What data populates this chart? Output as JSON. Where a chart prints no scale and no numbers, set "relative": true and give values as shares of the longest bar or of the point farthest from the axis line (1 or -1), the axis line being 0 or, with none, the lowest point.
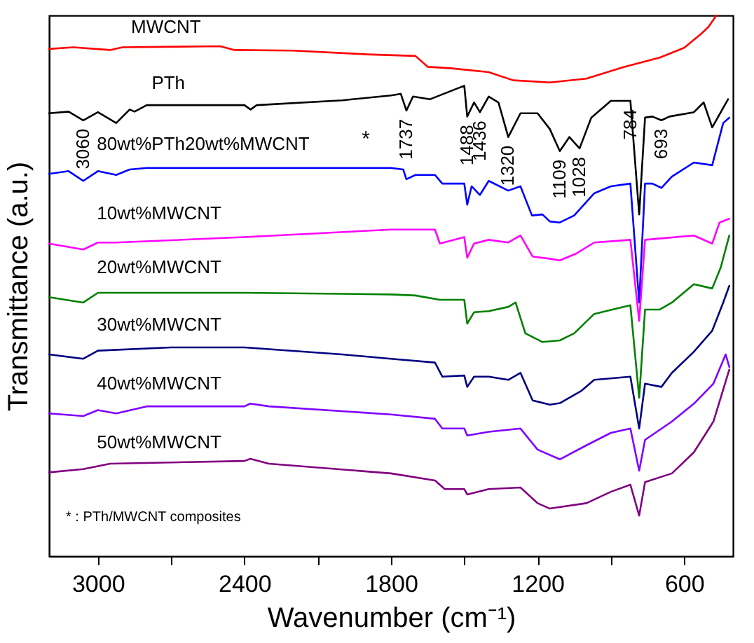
{
  "chart_data": {
    "type": "line",
    "relative": true,
    "xlabel": "Wavenumber (cm⁻¹)",
    "ylabel": "Transmittance (a.u.)",
    "xlim": [
      3200,
      400
    ],
    "xticks": [
      3000,
      {
        "value": 2700,
        "label": null
      },
      2400,
      {
        "value": 2100,
        "label": null
      },
      1800,
      {
        "value": 1500,
        "label": null
      },
      1200,
      {
        "value": 900,
        "label": null
      },
      600
    ],
    "series": [
      {
        "name": "MWCNT",
        "color": "#ff0000",
        "x": [
          3200,
          3100,
          2950,
          2900,
          2500,
          2440,
          2200,
          1900,
          1700,
          1650,
          1550,
          1400,
          1300,
          1150,
          1000,
          850,
          700,
          600,
          530,
          500,
          468
        ],
        "values": [
          0.938,
          0.941,
          0.936,
          0.941,
          0.943,
          0.936,
          0.935,
          0.928,
          0.925,
          0.905,
          0.902,
          0.895,
          0.88,
          0.876,
          0.883,
          0.904,
          0.922,
          0.94,
          0.966,
          0.979,
          1.0
        ]
      },
      {
        "name": "PTh",
        "color": "#000000",
        "x": [
          3200,
          3120,
          3060,
          3000,
          2925,
          2870,
          2850,
          2800,
          2400,
          2375,
          2350,
          2000,
          1800,
          1760,
          1737,
          1710,
          1640,
          1500,
          1488,
          1460,
          1436,
          1400,
          1360,
          1320,
          1270,
          1200,
          1150,
          1109,
          1070,
          1028,
          980,
          900,
          820,
          784,
          760,
          730,
          693,
          660,
          560,
          520,
          485,
          420
        ],
        "values": [
          0.819,
          0.822,
          0.806,
          0.821,
          0.801,
          0.826,
          0.822,
          0.834,
          0.834,
          0.826,
          0.834,
          0.843,
          0.852,
          0.855,
          0.824,
          0.85,
          0.845,
          0.87,
          0.813,
          0.839,
          0.821,
          0.85,
          0.839,
          0.775,
          0.819,
          0.819,
          0.79,
          0.749,
          0.775,
          0.754,
          0.811,
          0.842,
          0.842,
          0.632,
          0.811,
          0.813,
          0.806,
          0.813,
          0.821,
          0.839,
          0.793,
          0.845
        ]
      },
      {
        "name": "80wt%PTh20wt%MWCNT",
        "color": "#0000ff",
        "x": [
          3200,
          3120,
          3060,
          3000,
          2925,
          2870,
          2800,
          1800,
          1750,
          1737,
          1700,
          1620,
          1590,
          1500,
          1488,
          1470,
          1436,
          1400,
          1320,
          1270,
          1223,
          1180,
          1150,
          1109,
          1050,
          968,
          900,
          820,
          784,
          760,
          730,
          693,
          650,
          560,
          485,
          440,
          415
        ],
        "values": [
          0.707,
          0.712,
          0.694,
          0.712,
          0.705,
          0.715,
          0.718,
          0.718,
          0.715,
          0.697,
          0.705,
          0.705,
          0.689,
          0.689,
          0.65,
          0.684,
          0.668,
          0.694,
          0.676,
          0.684,
          0.63,
          0.632,
          0.619,
          0.617,
          0.63,
          0.671,
          0.684,
          0.689,
          0.469,
          0.689,
          0.689,
          0.681,
          0.702,
          0.728,
          0.723,
          0.801,
          0.811
        ]
      },
      {
        "name": "10wt%MWCNT",
        "color": "#ff00ff",
        "x": [
          3200,
          3060,
          3000,
          2925,
          2400,
          1800,
          1620,
          1600,
          1500,
          1488,
          1460,
          1400,
          1320,
          1270,
          1220,
          1150,
          1109,
          1040,
          968,
          820,
          784,
          760,
          560,
          485,
          455,
          415
        ],
        "values": [
          0.578,
          0.567,
          0.58,
          0.58,
          0.59,
          0.604,
          0.604,
          0.578,
          0.59,
          0.552,
          0.578,
          0.585,
          0.58,
          0.593,
          0.554,
          0.55,
          0.547,
          0.56,
          0.58,
          0.585,
          0.435,
          0.585,
          0.593,
          0.578,
          0.617,
          0.624
        ]
      },
      {
        "name": "20wt%MWCNT",
        "color": "#008000",
        "x": [
          3200,
          3060,
          3000,
          2400,
          1800,
          1700,
          1600,
          1500,
          1488,
          1460,
          1400,
          1320,
          1290,
          1250,
          1180,
          1109,
          1050,
          968,
          820,
          784,
          760,
          700,
          650,
          560,
          485,
          450,
          415
        ],
        "values": [
          0.479,
          0.469,
          0.487,
          0.487,
          0.484,
          0.482,
          0.474,
          0.474,
          0.43,
          0.451,
          0.453,
          0.461,
          0.469,
          0.412,
          0.396,
          0.399,
          0.412,
          0.448,
          0.464,
          0.293,
          0.456,
          0.456,
          0.469,
          0.503,
          0.495,
          0.534,
          0.593
        ]
      },
      {
        "name": "30wt%MWCNT",
        "color": "#000080",
        "x": [
          3200,
          3060,
          3000,
          2700,
          2400,
          2000,
          1800,
          1620,
          1590,
          1500,
          1488,
          1460,
          1400,
          1320,
          1270,
          1220,
          1150,
          1109,
          1020,
          968,
          820,
          784,
          760,
          693,
          650,
          560,
          485,
          440,
          415
        ],
        "values": [
          0.373,
          0.365,
          0.38,
          0.386,
          0.386,
          0.373,
          0.365,
          0.358,
          0.332,
          0.334,
          0.313,
          0.332,
          0.332,
          0.326,
          0.339,
          0.288,
          0.28,
          0.283,
          0.306,
          0.326,
          0.332,
          0.236,
          0.319,
          0.313,
          0.339,
          0.378,
          0.417,
          0.469,
          0.5
        ]
      },
      {
        "name": "40wt%MWCNT",
        "color": "#8000ff",
        "x": [
          3200,
          3060,
          3000,
          2925,
          2800,
          2400,
          2376,
          2300,
          1800,
          1620,
          1590,
          1500,
          1488,
          1400,
          1270,
          1200,
          1109,
          1000,
          900,
          820,
          784,
          760,
          650,
          560,
          480,
          430,
          415
        ],
        "values": [
          0.264,
          0.259,
          0.27,
          0.264,
          0.277,
          0.277,
          0.282,
          0.277,
          0.262,
          0.254,
          0.236,
          0.236,
          0.223,
          0.23,
          0.236,
          0.197,
          0.179,
          0.205,
          0.228,
          0.236,
          0.158,
          0.215,
          0.249,
          0.282,
          0.319,
          0.373,
          0.35
        ]
      },
      {
        "name": "50wt%MWCNT",
        "color": "#800080",
        "x": [
          3200,
          3060,
          2950,
          2400,
          2376,
          2300,
          1800,
          1620,
          1580,
          1500,
          1488,
          1400,
          1270,
          1200,
          1150,
          1000,
          900,
          820,
          784,
          760,
          650,
          560,
          480,
          415
        ],
        "values": [
          0.155,
          0.161,
          0.171,
          0.176,
          0.18,
          0.171,
          0.153,
          0.14,
          0.124,
          0.124,
          0.114,
          0.124,
          0.127,
          0.098,
          0.088,
          0.098,
          0.119,
          0.132,
          0.075,
          0.137,
          0.153,
          0.192,
          0.249,
          0.345
        ]
      }
    ],
    "annotations": [
      {
        "text": "3060",
        "x": 3060,
        "y": 0.806
      },
      {
        "text": "1737",
        "x": 1737,
        "y": 0.824
      },
      {
        "text": "1488",
        "x": 1488,
        "y": 0.813
      },
      {
        "text": "1436",
        "x": 1436,
        "y": 0.821
      },
      {
        "text": "1320",
        "x": 1320,
        "y": 0.775
      },
      {
        "text": "1109",
        "x": 1109,
        "y": 0.749
      },
      {
        "text": "1028",
        "x": 1028,
        "y": 0.754
      },
      {
        "text": "784",
        "x": 820,
        "y": 0.842
      },
      {
        "text": "693",
        "x": 693,
        "y": 0.806
      },
      "*",
      "* : PTh/MWCNT composites"
    ]
  }
}
